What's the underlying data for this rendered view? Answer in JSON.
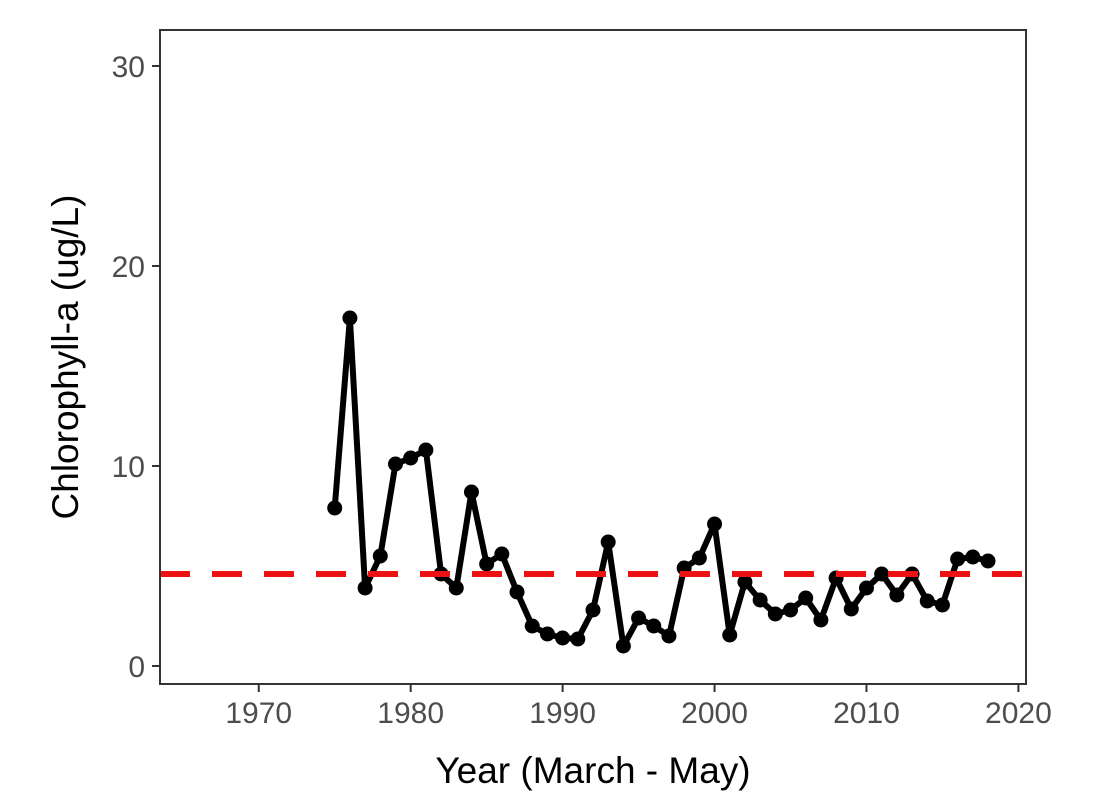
{
  "chart_data": {
    "type": "line",
    "title": "",
    "xlabel": "Year (March - May)",
    "ylabel": "Chlorophyll-a (ug/L)",
    "xlim": [
      1963.5,
      2020.5
    ],
    "ylim": [
      -0.9,
      31.8
    ],
    "x_ticks": [
      1970,
      1980,
      1990,
      2000,
      2010,
      2020
    ],
    "y_ticks": [
      0,
      10,
      20,
      30
    ],
    "grid": false,
    "legend": "none",
    "series": [
      {
        "color": "#000000",
        "points": [
          [
            1975,
            7.9
          ],
          [
            1976,
            17.4
          ],
          [
            1977,
            3.9
          ],
          [
            1978,
            5.5
          ],
          [
            1979,
            10.1
          ],
          [
            1980,
            10.4
          ],
          [
            1981,
            10.8
          ],
          [
            1982,
            4.6
          ],
          [
            1983,
            3.9
          ],
          [
            1984,
            8.7
          ],
          [
            1985,
            5.1
          ],
          [
            1986,
            5.6
          ],
          [
            1987,
            3.7
          ],
          [
            1988,
            2.0
          ],
          [
            1989,
            1.6
          ],
          [
            1990,
            1.4
          ],
          [
            1991,
            1.35
          ],
          [
            1992,
            2.8
          ],
          [
            1993,
            6.2
          ],
          [
            1994,
            1.0
          ],
          [
            1995,
            2.4
          ],
          [
            1996,
            2.0
          ],
          [
            1997,
            1.5
          ],
          [
            1998,
            4.9
          ],
          [
            1999,
            5.4
          ],
          [
            2000,
            7.1
          ],
          [
            2001,
            1.55
          ],
          [
            2002,
            4.2
          ],
          [
            2003,
            3.3
          ],
          [
            2004,
            2.6
          ],
          [
            2005,
            2.8
          ],
          [
            2006,
            3.4
          ],
          [
            2007,
            2.3
          ],
          [
            2008,
            4.4
          ],
          [
            2009,
            2.85
          ],
          [
            2010,
            3.9
          ],
          [
            2011,
            4.6
          ],
          [
            2012,
            3.55
          ],
          [
            2013,
            4.6
          ],
          [
            2014,
            3.25
          ],
          [
            2015,
            3.05
          ],
          [
            2016,
            5.35
          ],
          [
            2017,
            5.45
          ],
          [
            2018,
            5.25
          ]
        ]
      }
    ],
    "reference_line": {
      "y": 4.6,
      "color": "#ee1111",
      "style": "dashed"
    }
  }
}
